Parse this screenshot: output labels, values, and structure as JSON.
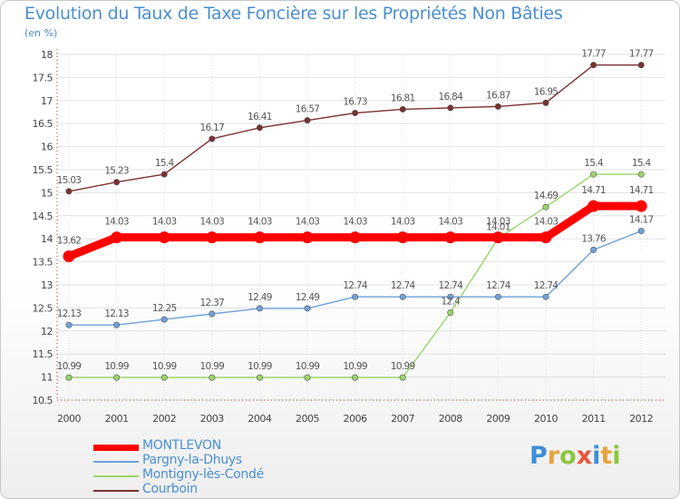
{
  "header": {
    "title": "Evolution du Taux de Taxe Foncière sur les Propriétés Non Bâties",
    "unit": "(en %)"
  },
  "logo": {
    "letters": [
      "P",
      "r",
      "o",
      "x",
      "i",
      "t",
      "i"
    ],
    "colors": [
      "#3d8fd8",
      "#e8a33b",
      "#8cc63f",
      "#e8553b",
      "#3d8fd8",
      "#e8a33b",
      "#8cc63f"
    ]
  },
  "chart_data": {
    "type": "line",
    "title": "Evolution du Taux de Taxe Foncière sur les Propriétés Non Bâties",
    "ylabel": "(en %)",
    "xlabel": "",
    "ylim": [
      10.5,
      18
    ],
    "yticks": [
      10.5,
      11,
      11.5,
      12,
      12.5,
      13,
      13.5,
      14,
      14.5,
      15,
      15.5,
      16,
      16.5,
      17,
      17.5,
      18
    ],
    "ytick_labels": [
      "10.5",
      "11",
      "11.5",
      "12",
      "12.5",
      "13",
      "13.5",
      "14",
      "14.5",
      "15",
      "15.5",
      "16",
      "16.5",
      "17",
      "17.5",
      "18"
    ],
    "x": [
      "2000",
      "2001",
      "2002",
      "2003",
      "2004",
      "2005",
      "2006",
      "2007",
      "2008",
      "2009",
      "2010",
      "2011",
      "2012"
    ],
    "series": [
      {
        "name": "MONTLEVON",
        "color": "#ff0000",
        "values": [
          13.62,
          14.03,
          14.03,
          14.03,
          14.03,
          14.03,
          14.03,
          14.03,
          14.03,
          14.03,
          14.03,
          14.71,
          14.71
        ],
        "labels": [
          "13.62",
          "14.03",
          "14.03",
          "14.03",
          "14.03",
          "14.03",
          "14.03",
          "14.03",
          "14.03",
          "14.03",
          "14.03",
          "14.71",
          "14.71"
        ]
      },
      {
        "name": "Pargny-la-Dhuys",
        "color": "#6fa1d8",
        "values": [
          12.13,
          12.13,
          12.25,
          12.37,
          12.49,
          12.49,
          12.74,
          12.74,
          12.74,
          12.74,
          12.74,
          13.76,
          14.17
        ],
        "labels": [
          "12.13",
          "12.13",
          "12.25",
          "12.37",
          "12.49",
          "12.49",
          "12.74",
          "12.74",
          "12.74",
          "12.74",
          "12.74",
          "13.76",
          "14.17"
        ]
      },
      {
        "name": "Montigny-lès-Condé",
        "color": "#9ad56a",
        "values": [
          10.99,
          10.99,
          10.99,
          10.99,
          10.99,
          10.99,
          10.99,
          10.99,
          12.4,
          14.01,
          14.69,
          15.4,
          15.4
        ],
        "labels": [
          "10.99",
          "10.99",
          "10.99",
          "10.99",
          "10.99",
          "10.99",
          "10.99",
          "10.99",
          "12.4",
          "14.01",
          "14.69",
          "15.4",
          "15.4"
        ]
      },
      {
        "name": "Courboin",
        "color": "#7a3030",
        "values": [
          15.03,
          15.23,
          15.4,
          16.17,
          16.41,
          16.57,
          16.73,
          16.81,
          16.84,
          16.87,
          16.95,
          17.77,
          17.77
        ],
        "labels": [
          "15.03",
          "15.23",
          "15.4",
          "16.17",
          "16.41",
          "16.57",
          "16.73",
          "16.81",
          "16.84",
          "16.87",
          "16.95",
          "17.77",
          "17.77"
        ]
      }
    ],
    "legend_position": "bottom-left"
  }
}
